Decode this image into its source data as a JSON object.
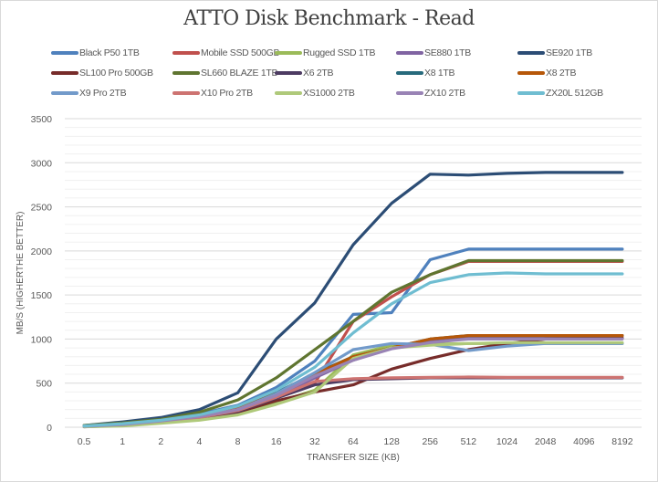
{
  "chart_data": {
    "type": "line",
    "title": "ATTO Disk Benchmark - Read",
    "xlabel": "TRANSFER SIZE (KB)",
    "ylabel": "MB/S (HIGHERTHE BETTER)",
    "ylim": [
      0,
      3500
    ],
    "y_major_step": 500,
    "y_minor_step": 100,
    "yticks": [
      "0",
      "500",
      "1000",
      "1500",
      "2000",
      "2500",
      "3000",
      "3500"
    ],
    "categories": [
      "0.5",
      "1",
      "2",
      "4",
      "8",
      "16",
      "32",
      "64",
      "128",
      "256",
      "512",
      "1024",
      "2048",
      "4096",
      "8192"
    ],
    "grid": true,
    "legend_position": "top",
    "series": [
      {
        "name": "Black P50 1TB",
        "color": "#4f81bd",
        "values": [
          15,
          40,
          80,
          150,
          250,
          450,
          750,
          1280,
          1300,
          1900,
          2020,
          2020,
          2020,
          2020,
          2020
        ]
      },
      {
        "name": "Mobile SSD 500GB",
        "color": "#c0504d",
        "values": [
          10,
          25,
          60,
          110,
          200,
          340,
          500,
          1200,
          1480,
          1730,
          1880,
          1880,
          1880,
          1880,
          1880
        ]
      },
      {
        "name": "Rugged SSD 1TB",
        "color": "#9bbb59",
        "values": [
          8,
          20,
          50,
          90,
          160,
          280,
          420,
          820,
          930,
          940,
          950,
          950,
          950,
          950,
          950
        ]
      },
      {
        "name": "SE880 1TB",
        "color": "#8064a2",
        "values": [
          10,
          30,
          65,
          120,
          200,
          350,
          560,
          760,
          900,
          970,
          1010,
          1010,
          1010,
          1010,
          1010
        ]
      },
      {
        "name": "SE920 1TB",
        "color": "#2c4d75",
        "values": [
          20,
          60,
          110,
          200,
          390,
          1000,
          1410,
          2070,
          2540,
          2870,
          2860,
          2880,
          2890,
          2890,
          2890
        ]
      },
      {
        "name": "SL100 Pro 500GB",
        "color": "#772c2a",
        "values": [
          5,
          20,
          55,
          100,
          170,
          300,
          400,
          480,
          660,
          780,
          880,
          950,
          1000,
          1010,
          1010
        ]
      },
      {
        "name": "SL660 BLAZE 1TB",
        "color": "#5f7530",
        "values": [
          20,
          50,
          90,
          170,
          310,
          560,
          880,
          1200,
          1530,
          1730,
          1890,
          1890,
          1890,
          1890,
          1890
        ]
      },
      {
        "name": "X6 2TB",
        "color": "#4d3b62",
        "values": [
          10,
          30,
          60,
          110,
          180,
          330,
          480,
          540,
          550,
          560,
          560,
          560,
          560,
          560,
          560
        ]
      },
      {
        "name": "X8 1TB",
        "color": "#276a7c",
        "values": [
          10,
          35,
          70,
          125,
          210,
          390,
          610,
          800,
          900,
          1000,
          1040,
          1040,
          1040,
          1040,
          1040
        ]
      },
      {
        "name": "X8 2TB",
        "color": "#b65708",
        "values": [
          10,
          30,
          70,
          130,
          210,
          380,
          600,
          800,
          900,
          1000,
          1040,
          1040,
          1040,
          1040,
          1040
        ]
      },
      {
        "name": "X9 Pro 2TB",
        "color": "#729aca",
        "values": [
          10,
          30,
          70,
          120,
          200,
          380,
          620,
          880,
          950,
          940,
          870,
          920,
          950,
          950,
          950
        ]
      },
      {
        "name": "X10 Pro 2TB",
        "color": "#cd7371",
        "values": [
          10,
          30,
          60,
          110,
          190,
          340,
          520,
          550,
          560,
          565,
          570,
          565,
          565,
          565,
          565
        ]
      },
      {
        "name": "XS1000 2TB",
        "color": "#afc97a",
        "values": [
          5,
          15,
          45,
          80,
          140,
          260,
          400,
          780,
          900,
          930,
          950,
          960,
          960,
          960,
          960
        ]
      },
      {
        "name": "ZX10 2TB",
        "color": "#9983b5",
        "values": [
          10,
          30,
          70,
          120,
          200,
          360,
          580,
          760,
          890,
          960,
          1000,
          1000,
          1000,
          1000,
          1000
        ]
      },
      {
        "name": "ZX20L 512GB",
        "color": "#6fbdd1",
        "values": [
          15,
          40,
          80,
          140,
          240,
          420,
          680,
          1070,
          1400,
          1640,
          1730,
          1750,
          1740,
          1740,
          1740
        ]
      }
    ]
  }
}
